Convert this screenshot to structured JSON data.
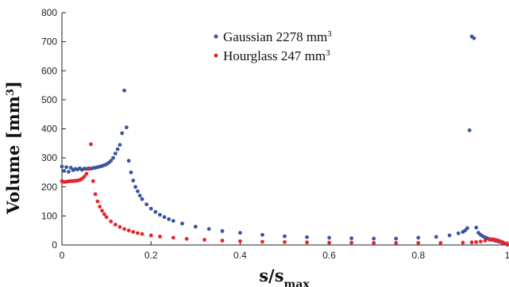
{
  "chart_data": {
    "type": "scatter",
    "xlabel": "s/s",
    "xlabel_sub": "max",
    "ylabel": "Volume [mm",
    "ylabel_sup": "3",
    "ylabel_end": "]",
    "xlim": [
      0,
      1
    ],
    "ylim": [
      0,
      800
    ],
    "xticks": [
      "0",
      "0.2",
      "0.4",
      "0.6",
      "0.8",
      "1"
    ],
    "xtick_values": [
      0,
      0.2,
      0.4,
      0.6,
      0.8,
      1
    ],
    "yticks": [
      "0",
      "100",
      "200",
      "300",
      "400",
      "500",
      "600",
      "700",
      "800"
    ],
    "ytick_values": [
      0,
      100,
      200,
      300,
      400,
      500,
      600,
      700,
      800
    ],
    "grid": false,
    "legend_position": "top-center",
    "series": [
      {
        "name": "Gaussian 2278 mm",
        "name_sup": "3",
        "color": "#3a55a4",
        "x": [
          0.0,
          0.005,
          0.01,
          0.015,
          0.02,
          0.025,
          0.03,
          0.035,
          0.04,
          0.045,
          0.05,
          0.055,
          0.06,
          0.065,
          0.07,
          0.075,
          0.08,
          0.085,
          0.09,
          0.095,
          0.1,
          0.105,
          0.11,
          0.115,
          0.12,
          0.125,
          0.13,
          0.135,
          0.14,
          0.145,
          0.15,
          0.155,
          0.16,
          0.165,
          0.17,
          0.175,
          0.18,
          0.19,
          0.2,
          0.21,
          0.22,
          0.23,
          0.24,
          0.25,
          0.27,
          0.3,
          0.33,
          0.36,
          0.4,
          0.45,
          0.5,
          0.55,
          0.6,
          0.65,
          0.7,
          0.75,
          0.8,
          0.84,
          0.87,
          0.89,
          0.9,
          0.905,
          0.91,
          0.915,
          0.92,
          0.925,
          0.93,
          0.935,
          0.94,
          0.945,
          0.95,
          0.955,
          0.96,
          0.965,
          0.97,
          0.975,
          0.98,
          0.985,
          0.99,
          0.995,
          1.0
        ],
        "y": [
          270,
          255,
          268,
          252,
          266,
          258,
          262,
          260,
          264,
          259,
          263,
          262,
          264,
          263,
          265,
          266,
          268,
          270,
          272,
          275,
          278,
          283,
          290,
          300,
          315,
          330,
          345,
          385,
          532,
          405,
          290,
          250,
          222,
          200,
          185,
          170,
          158,
          140,
          125,
          114,
          104,
          96,
          89,
          83,
          74,
          63,
          55,
          48,
          42,
          35,
          30,
          27,
          25,
          23,
          22,
          22,
          25,
          28,
          33,
          40,
          45,
          50,
          58,
          395,
          718,
          712,
          60,
          42,
          35,
          30,
          26,
          23,
          20,
          18,
          16,
          14,
          12,
          10,
          7,
          4,
          1
        ]
      },
      {
        "name": "Hourglass 247 mm",
        "name_sup": "3",
        "color": "#e8242b",
        "x": [
          0.0,
          0.005,
          0.01,
          0.015,
          0.02,
          0.025,
          0.03,
          0.035,
          0.04,
          0.045,
          0.05,
          0.055,
          0.06,
          0.065,
          0.07,
          0.075,
          0.08,
          0.085,
          0.09,
          0.095,
          0.1,
          0.11,
          0.12,
          0.13,
          0.14,
          0.15,
          0.16,
          0.17,
          0.18,
          0.2,
          0.22,
          0.25,
          0.28,
          0.32,
          0.36,
          0.4,
          0.45,
          0.5,
          0.55,
          0.6,
          0.65,
          0.7,
          0.75,
          0.8,
          0.85,
          0.9,
          0.92,
          0.93,
          0.94,
          0.95,
          0.96,
          0.965,
          0.97,
          0.975,
          0.98,
          0.985,
          0.99,
          0.995,
          1.0
        ],
        "y": [
          220,
          217,
          218,
          219,
          220,
          220,
          221,
          222,
          224,
          228,
          235,
          245,
          262,
          347,
          220,
          175,
          150,
          132,
          118,
          106,
          96,
          81,
          70,
          62,
          55,
          50,
          45,
          41,
          38,
          33,
          29,
          25,
          21,
          18,
          15,
          13,
          11,
          10,
          9,
          8,
          8,
          7,
          7,
          7,
          7,
          8,
          9,
          10,
          12,
          15,
          18,
          20,
          19,
          17,
          15,
          12,
          9,
          5,
          2
        ]
      }
    ]
  }
}
